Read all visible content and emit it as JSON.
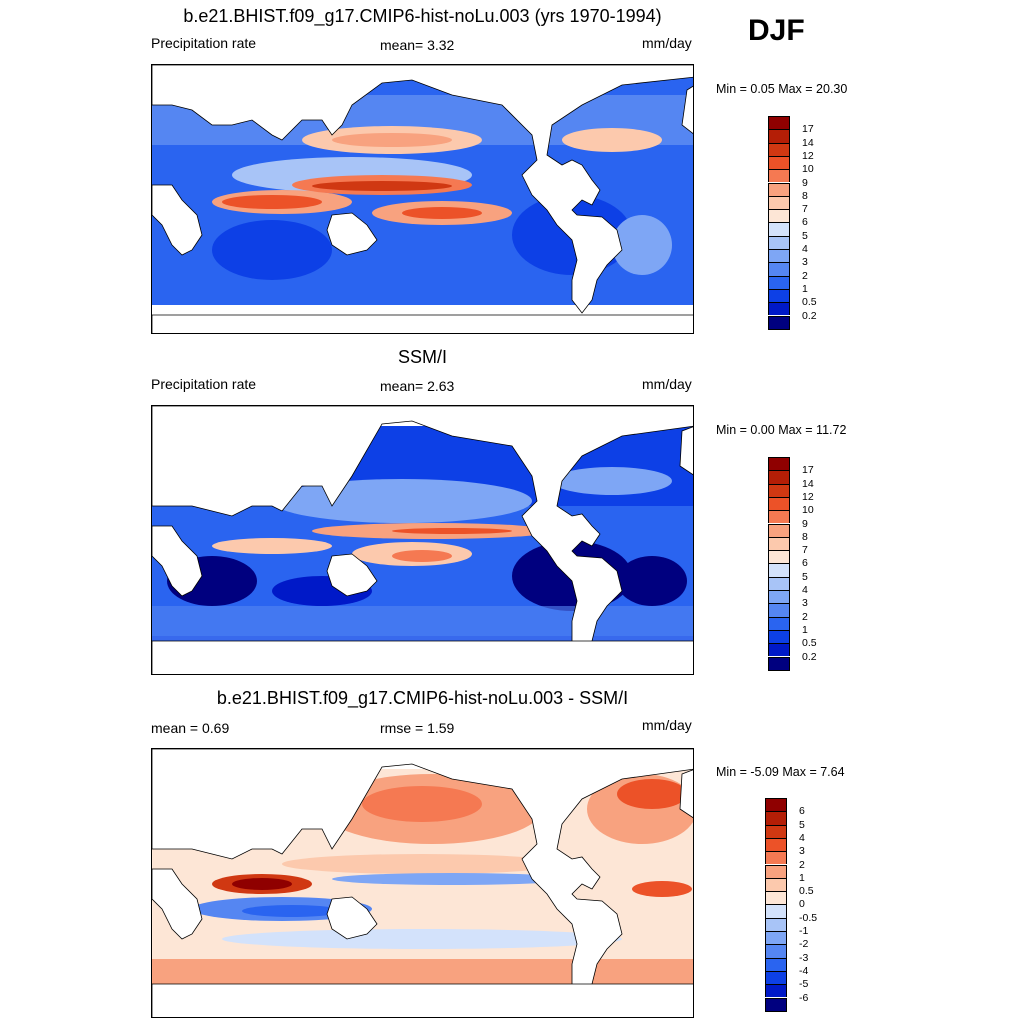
{
  "season": "DJF",
  "palettes": {
    "precip": [
      "#00007f",
      "#0019c8",
      "#0d40e6",
      "#2a64f0",
      "#5586f2",
      "#7ea6f5",
      "#a8c4f7",
      "#d3e2fb",
      "#fde6d6",
      "#fcc9ad",
      "#f8a27f",
      "#f57952",
      "#ec5228",
      "#d03812",
      "#b41e06",
      "#8f0000"
    ],
    "diff": [
      "#00007f",
      "#0019c8",
      "#0d40e6",
      "#2a64f0",
      "#5586f2",
      "#7ea6f5",
      "#a8c4f7",
      "#d3e2fb",
      "#fde6d6",
      "#fcc9ad",
      "#f8a27f",
      "#f57952",
      "#ec5228",
      "#d03812",
      "#b41e06",
      "#8f0000"
    ]
  },
  "panels": [
    {
      "title": "b.e21.BHIST.f09_g17.CMIP6-hist-noLu.003 (yrs 1970-1994)",
      "left_label": "Precipitation rate",
      "center_label": "mean=   3.32",
      "right_label": "mm/day",
      "min_max": "Min =   0.05 Max =  20.30",
      "colorbar": {
        "labels": [
          "17",
          "14",
          "12",
          "10",
          "9",
          "8",
          "7",
          "6",
          "5",
          "4",
          "3",
          "2",
          "1",
          "0.5",
          "0.2"
        ],
        "palette": "precip"
      }
    },
    {
      "title": "SSM/I",
      "left_label": "Precipitation rate",
      "center_label": "mean=   2.63",
      "right_label": "mm/day",
      "min_max": "Min =   0.00 Max =  11.72",
      "colorbar": {
        "labels": [
          "17",
          "14",
          "12",
          "10",
          "9",
          "8",
          "7",
          "6",
          "5",
          "4",
          "3",
          "2",
          "1",
          "0.5",
          "0.2"
        ],
        "palette": "precip"
      }
    },
    {
      "title": "b.e21.BHIST.f09_g17.CMIP6-hist-noLu.003 - SSM/I",
      "left_label": "mean =   0.69",
      "center_label": "rmse =   1.59",
      "right_label": "mm/day",
      "min_max": "Min =  -5.09 Max =   7.64",
      "colorbar": {
        "labels": [
          "6",
          "5",
          "4",
          "3",
          "2",
          "1",
          "0.5",
          "0",
          "-0.5",
          "-1",
          "-2",
          "-3",
          "-4",
          "-5",
          "-6"
        ],
        "palette": "diff"
      }
    }
  ]
}
